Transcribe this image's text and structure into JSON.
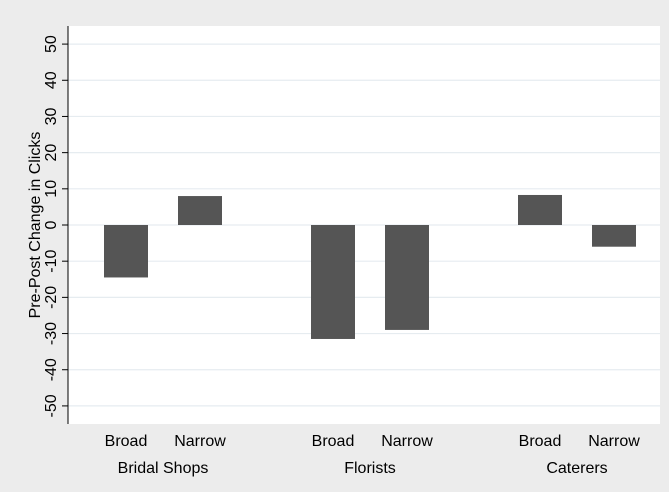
{
  "chart_data": {
    "type": "bar",
    "ylabel": "Pre-Post Change in Clicks",
    "ylim": [
      -55,
      55
    ],
    "yticks": [
      50,
      40,
      30,
      20,
      10,
      0,
      -10,
      -20,
      -30,
      -40,
      -50
    ],
    "ytick_labels": [
      "50",
      "40",
      "30",
      "20",
      "10",
      "0",
      "-10",
      "-20",
      "-30",
      "-40",
      "-50"
    ],
    "grid": true,
    "groups": [
      {
        "name": "Bridal Shops",
        "bars": [
          {
            "label": "Broad",
            "value": -14.5
          },
          {
            "label": "Narrow",
            "value": 8
          }
        ]
      },
      {
        "name": "Florists",
        "bars": [
          {
            "label": "Broad",
            "value": -31.5
          },
          {
            "label": "Narrow",
            "value": -29
          }
        ]
      },
      {
        "name": "Caterers",
        "bars": [
          {
            "label": "Broad",
            "value": 8.3
          },
          {
            "label": "Narrow",
            "value": -6
          }
        ]
      }
    ],
    "colors": {
      "bar": "#555555",
      "plot_bg": "#ffffff",
      "outer_bg": "#ececec",
      "grid": "#e6ecf0",
      "axis": "#000000"
    }
  }
}
